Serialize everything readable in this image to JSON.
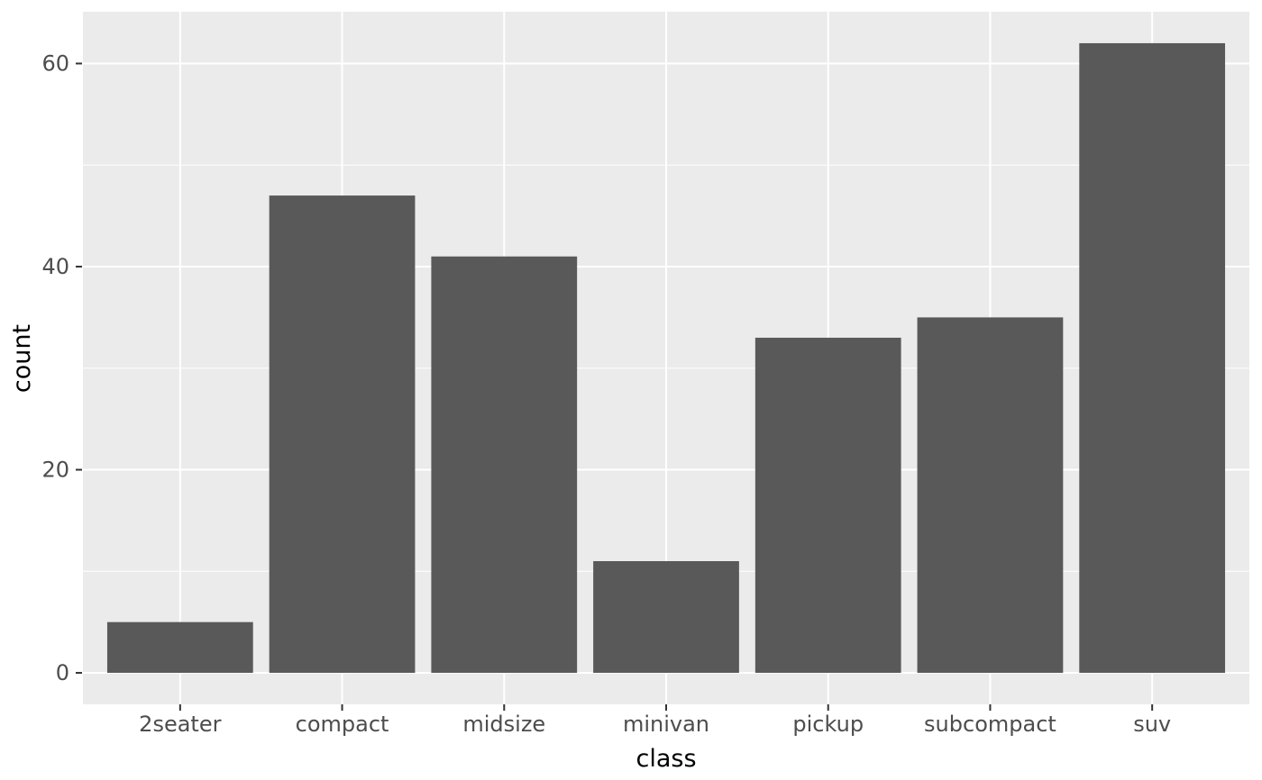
{
  "chart_data": {
    "type": "bar",
    "title": "",
    "categories": [
      "2seater",
      "compact",
      "midsize",
      "minivan",
      "pickup",
      "subcompact",
      "suv"
    ],
    "values": [
      5,
      47,
      41,
      11,
      33,
      35,
      62
    ],
    "xlabel": "class",
    "ylabel": "count",
    "ylim": [
      -3.1,
      65.1
    ],
    "yticks_major": [
      0,
      20,
      40,
      60
    ],
    "ytick_labels": [
      "0",
      "20",
      "40",
      "60"
    ],
    "yticks_minor": [
      10,
      30,
      50
    ],
    "bar_width_fraction": 0.9,
    "grid": "major horizontal + minor horizontal + major vertical at category centers",
    "legend_position": "none",
    "colors": {
      "bar_fill": "#595959",
      "panel_background": "#EBEBEB",
      "gridline": "#FFFFFF",
      "tick_label": "#4D4D4D",
      "axis_title": "#000000",
      "tick_mark": "#333333",
      "outer_background": "#FFFFFF"
    }
  }
}
